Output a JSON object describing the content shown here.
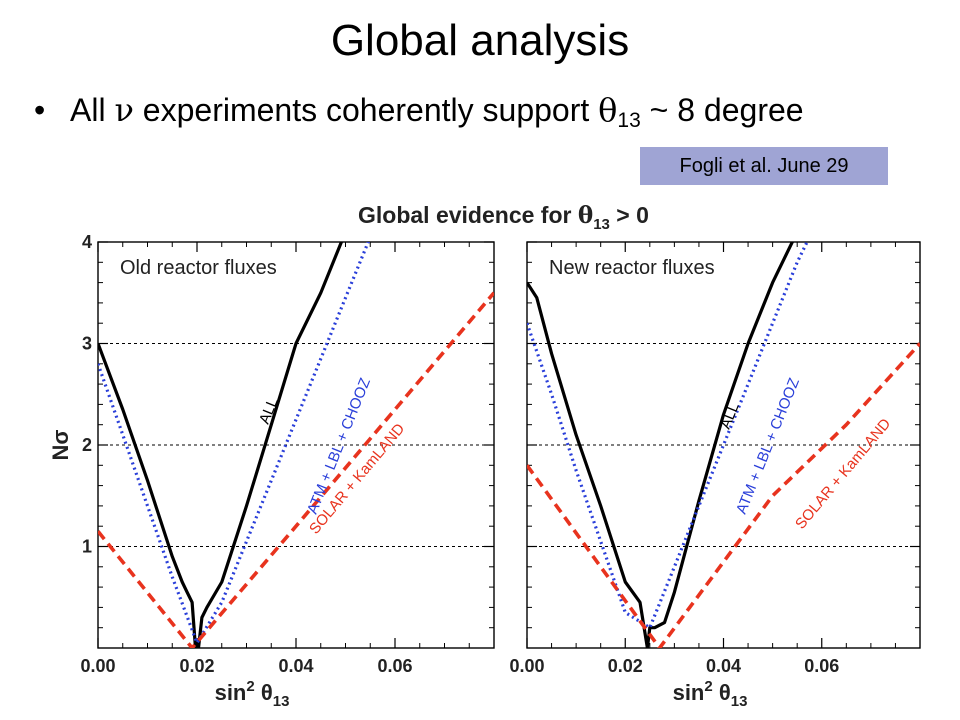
{
  "slide": {
    "title": "Global analysis",
    "bullet": {
      "prefix": "All ",
      "nu": "ν",
      "middle": " experiments coherently support ",
      "theta": "θ",
      "sub": "13",
      "suffix": " ~ 8 degree"
    },
    "citation": "Fogli et al. June 29"
  },
  "chart_data": {
    "type": "line",
    "title": {
      "main": "Global evidence for ",
      "theta": "θ",
      "sub": "13",
      "rest": " > 0"
    },
    "xlabel": {
      "main": "sin",
      "sup": "2",
      "theta": " θ",
      "sub": "13"
    },
    "ylabel": "Nσ",
    "xlim": [
      0,
      0.08
    ],
    "ylim": [
      0,
      4
    ],
    "xticks": [
      "0.00",
      "0.02",
      "0.04",
      "0.06"
    ],
    "xtick_values": [
      0,
      0.02,
      0.04,
      0.06
    ],
    "yticks": [
      "1",
      "2",
      "3",
      "4"
    ],
    "ytick_values": [
      1,
      2,
      3,
      4
    ],
    "reference_lines_y": [
      1,
      2,
      3
    ],
    "grid": false,
    "colors": {
      "ALL": "#000000",
      "ATM + LBL + CHOOZ": "#2a3fd9",
      "SOLAR + KamLAND": "#e8331e"
    },
    "panels": [
      {
        "label": "Old reactor fluxes",
        "series": [
          {
            "name": "ALL",
            "x": [
              0.0,
              0.005,
              0.01,
              0.015,
              0.017,
              0.018,
              0.019,
              0.0197,
              0.0203,
              0.021,
              0.022,
              0.025,
              0.03,
              0.035,
              0.04,
              0.045,
              0.05,
              0.052
            ],
            "y": [
              3.0,
              2.35,
              1.65,
              0.9,
              0.65,
              0.55,
              0.45,
              0.0,
              0.0,
              0.3,
              0.4,
              0.65,
              1.4,
              2.2,
              3.0,
              3.5,
              4.1,
              4.3
            ]
          },
          {
            "name": "ATM + LBL + CHOOZ",
            "x": [
              0.0,
              0.005,
              0.01,
              0.015,
              0.02,
              0.025,
              0.03,
              0.035,
              0.04,
              0.045,
              0.05,
              0.055,
              0.06
            ],
            "y": [
              2.8,
              2.1,
              1.4,
              0.7,
              0.05,
              0.45,
              1.05,
              1.65,
              2.25,
              2.85,
              3.45,
              4.05,
              4.3
            ]
          },
          {
            "name": "SOLAR + KamLAND",
            "x": [
              0.0,
              0.019,
              0.04,
              0.06,
              0.08
            ],
            "y": [
              1.15,
              0.0,
              1.2,
              2.35,
              3.5
            ]
          }
        ]
      },
      {
        "label": "New reactor fluxes",
        "series": [
          {
            "name": "ALL",
            "x": [
              0.0,
              0.002,
              0.005,
              0.01,
              0.015,
              0.02,
              0.023,
              0.0245,
              0.025,
              0.026,
              0.028,
              0.03,
              0.035,
              0.04,
              0.045,
              0.05,
              0.055,
              0.058
            ],
            "y": [
              3.6,
              3.45,
              2.9,
              2.1,
              1.4,
              0.65,
              0.45,
              0.0,
              0.2,
              0.2,
              0.25,
              0.55,
              1.45,
              2.3,
              3.0,
              3.6,
              4.1,
              4.3
            ]
          },
          {
            "name": "ATM + LBL + CHOOZ",
            "x": [
              0.0,
              0.005,
              0.01,
              0.015,
              0.02,
              0.025,
              0.03,
              0.035,
              0.04,
              0.045,
              0.05,
              0.055,
              0.06
            ],
            "y": [
              3.2,
              2.5,
              1.75,
              1.05,
              0.35,
              0.2,
              0.8,
              1.4,
              2.0,
              2.6,
              3.2,
              3.8,
              4.3
            ]
          },
          {
            "name": "SOLAR + KamLAND",
            "x": [
              0.0,
              0.027,
              0.05,
              0.065,
              0.08
            ],
            "y": [
              1.8,
              0.0,
              1.5,
              2.2,
              3.0
            ]
          }
        ]
      }
    ]
  }
}
